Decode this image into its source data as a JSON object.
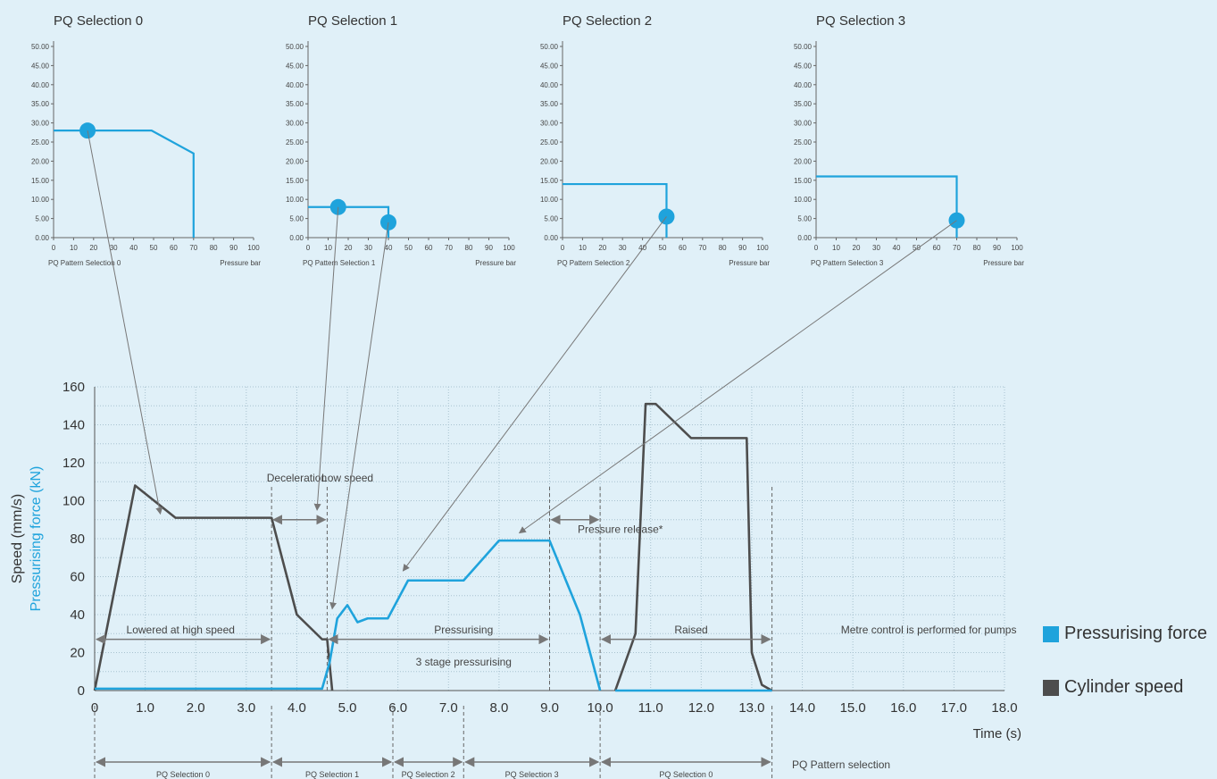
{
  "colors": {
    "blue": "#1fa3dc",
    "dark": "#4d4d4d",
    "background": "#e0f0f8"
  },
  "legend": {
    "pressurising_force": "Pressurising force",
    "cylinder_speed": "Cylinder speed"
  },
  "chart_data": [
    {
      "type": "line",
      "title": "PQ Selection 0",
      "xlabel": "Pressure bar",
      "caption": "PQ Pattern Selection 0",
      "xlim": [
        0,
        100
      ],
      "ylim": [
        0,
        50
      ],
      "xticks": [
        "0",
        "10",
        "20",
        "30",
        "40",
        "50",
        "60",
        "70",
        "80",
        "90",
        "100"
      ],
      "yticks": [
        "0.00",
        "5.00",
        "10.00",
        "15.00",
        "20.00",
        "25.00",
        "30.00",
        "35.00",
        "40.00",
        "45.00",
        "50.00"
      ],
      "series": [
        {
          "x": [
            0,
            49,
            70,
            70
          ],
          "y": [
            28,
            28,
            22,
            0
          ]
        }
      ],
      "points": [
        {
          "x": 17,
          "y": 28
        }
      ]
    },
    {
      "type": "line",
      "title": "PQ Selection 1",
      "xlabel": "Pressure bar",
      "caption": "PQ Pattern Selection 1",
      "xlim": [
        0,
        100
      ],
      "ylim": [
        0,
        50
      ],
      "xticks": [
        "0",
        "10",
        "20",
        "30",
        "40",
        "50",
        "60",
        "70",
        "80",
        "90",
        "100"
      ],
      "yticks": [
        "0.00",
        "5.00",
        "10.00",
        "15.00",
        "20.00",
        "25.00",
        "30.00",
        "35.00",
        "40.00",
        "45.00",
        "50.00"
      ],
      "series": [
        {
          "x": [
            0,
            40,
            40
          ],
          "y": [
            8,
            8,
            0
          ]
        }
      ],
      "points": [
        {
          "x": 15,
          "y": 8
        },
        {
          "x": 40,
          "y": 4
        }
      ]
    },
    {
      "type": "line",
      "title": "PQ Selection 2",
      "xlabel": "Pressure bar",
      "caption": "PQ Pattern Selection 2",
      "xlim": [
        0,
        100
      ],
      "ylim": [
        0,
        50
      ],
      "xticks": [
        "0",
        "10",
        "20",
        "30",
        "40",
        "50",
        "60",
        "70",
        "80",
        "90",
        "100"
      ],
      "yticks": [
        "0.00",
        "5.00",
        "10.00",
        "15.00",
        "20.00",
        "25.00",
        "30.00",
        "35.00",
        "40.00",
        "45.00",
        "50.00"
      ],
      "series": [
        {
          "x": [
            0,
            52,
            52
          ],
          "y": [
            14,
            14,
            0
          ]
        }
      ],
      "points": [
        {
          "x": 52,
          "y": 5.5
        }
      ]
    },
    {
      "type": "line",
      "title": "PQ Selection 3",
      "xlabel": "Pressure bar",
      "caption": "PQ Pattern Selection 3",
      "xlim": [
        0,
        100
      ],
      "ylim": [
        0,
        50
      ],
      "xticks": [
        "0",
        "10",
        "20",
        "30",
        "40",
        "50",
        "60",
        "70",
        "80",
        "90",
        "100"
      ],
      "yticks": [
        "0.00",
        "5.00",
        "10.00",
        "15.00",
        "20.00",
        "25.00",
        "30.00",
        "35.00",
        "40.00",
        "45.00",
        "50.00"
      ],
      "series": [
        {
          "x": [
            0,
            70,
            70
          ],
          "y": [
            16,
            16,
            0
          ]
        }
      ],
      "points": [
        {
          "x": 70,
          "y": 4.5
        }
      ]
    },
    {
      "type": "line",
      "ylabel": "Speed (mm/s)",
      "ylabel2": "Pressurising force (kN)",
      "xlabel": "Time (s)",
      "xlim": [
        0,
        18
      ],
      "ylim": [
        0,
        160
      ],
      "xticks": [
        "0",
        "1.0",
        "2.0",
        "3.0",
        "4.0",
        "5.0",
        "6.0",
        "7.0",
        "8.0",
        "9.0",
        "10.0",
        "11.0",
        "12.0",
        "13.0",
        "14.0",
        "15.0",
        "16.0",
        "17.0",
        "18.0"
      ],
      "yticks": [
        "0",
        "20",
        "40",
        "60",
        "80",
        "100",
        "120",
        "140",
        "160"
      ],
      "series": [
        {
          "name": "Cylinder speed",
          "x": [
            0,
            0.8,
            1.6,
            3.5,
            4.0,
            4.5,
            4.6,
            4.7
          ],
          "y": [
            0,
            108,
            91,
            91,
            40,
            27,
            27,
            0
          ]
        },
        {
          "name": "Pressurising force",
          "x": [
            0,
            4.5,
            4.65,
            4.8,
            5.0,
            5.2,
            5.4,
            5.8,
            6.2,
            6.8,
            7.3,
            8.0,
            9.0,
            9.6,
            10.0
          ],
          "y": [
            1,
            1,
            15,
            38,
            45,
            36,
            38,
            38,
            58,
            58,
            58,
            79,
            79,
            40,
            0
          ]
        },
        {
          "name": "Cylinder speed",
          "x": [
            10.3,
            10.7,
            10.9,
            11.1,
            11.8,
            12.9,
            13.0,
            13.2,
            13.4
          ],
          "y": [
            0,
            30,
            151,
            151,
            133,
            133,
            20,
            3,
            0
          ]
        },
        {
          "name": "Pressurising force",
          "x": [
            10.3,
            13.4
          ],
          "y": [
            0,
            0
          ]
        }
      ],
      "annotations": [
        {
          "text": "Lowered at high speed",
          "x": 1.7,
          "y": 32
        },
        {
          "text": "Deceleration",
          "x": 4.0,
          "y": 112
        },
        {
          "text": "Low speed",
          "x": 5.0,
          "y": 112
        },
        {
          "text": "Pressurising",
          "x": 7.3,
          "y": 32
        },
        {
          "text": "3 stage pressurising",
          "x": 7.3,
          "y": 15
        },
        {
          "text": "Pressure release*",
          "x": 10.4,
          "y": 85
        },
        {
          "text": "Raised",
          "x": 11.8,
          "y": 32
        },
        {
          "text": "Metre control is performed for pumps",
          "x": 16.5,
          "y": 32
        }
      ],
      "bracket_arrows": [
        {
          "x1": 0,
          "x2": 3.5
        },
        {
          "x1": 3.5,
          "x2": 4.6
        },
        {
          "x1": 4.6,
          "x2": 9.0
        },
        {
          "x1": 9.0,
          "x2": 10.0
        },
        {
          "x1": 10.0,
          "x2": 13.4
        }
      ],
      "pq_pattern_selection": {
        "label": "PQ Pattern selection",
        "segments": [
          {
            "label": "PQ Selection 0",
            "start": 0,
            "end": 3.5
          },
          {
            "label": "PQ Selection 1",
            "start": 3.5,
            "end": 5.9
          },
          {
            "label": "PQ Selection 2",
            "start": 5.9,
            "end": 7.3
          },
          {
            "label": "PQ Selection 3",
            "start": 7.3,
            "end": 10.0
          },
          {
            "label": "PQ Selection 0",
            "start": 10.0,
            "end": 13.4
          }
        ]
      },
      "links": [
        {
          "from_chart": 0,
          "from_point": 0,
          "to_x": 1.3,
          "to_y": 93
        },
        {
          "from_chart": 1,
          "from_point": 0,
          "to_x": 4.4,
          "to_y": 95
        },
        {
          "from_chart": 1,
          "from_point": 1,
          "to_x": 4.7,
          "to_y": 43
        },
        {
          "from_chart": 2,
          "from_point": 0,
          "to_x": 6.1,
          "to_y": 63
        },
        {
          "from_chart": 3,
          "from_point": 0,
          "to_x": 8.4,
          "to_y": 83
        }
      ]
    }
  ]
}
